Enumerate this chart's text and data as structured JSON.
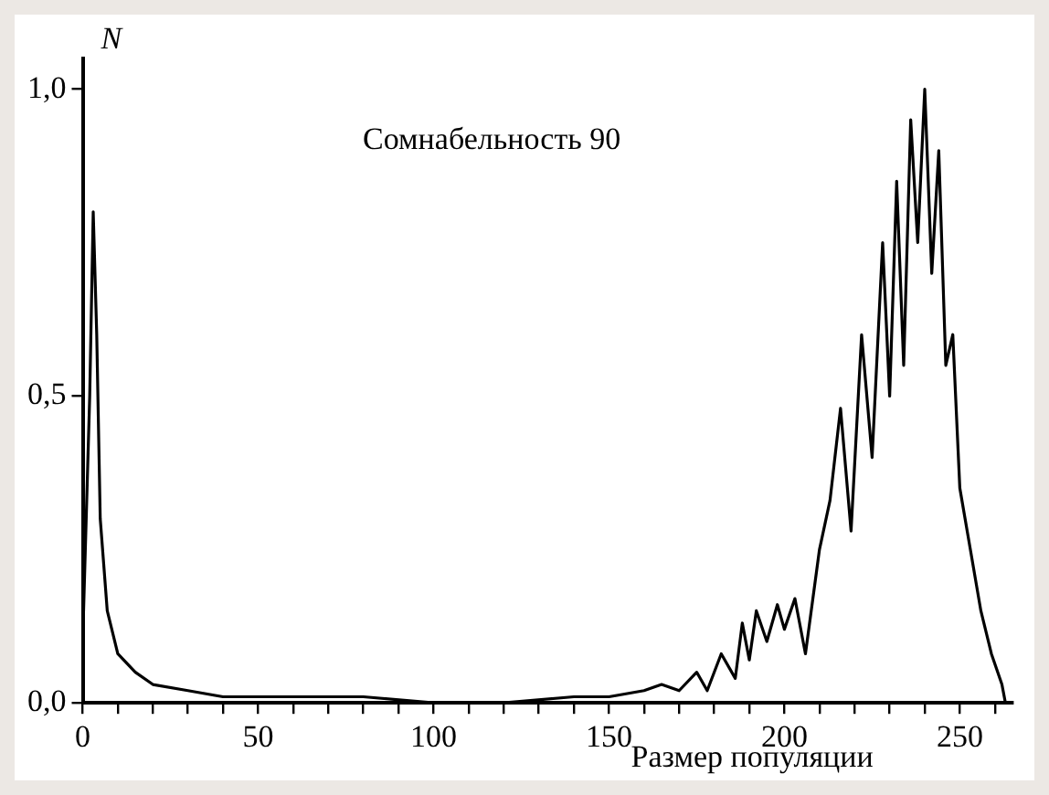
{
  "chart_data": {
    "type": "line",
    "xlabel": "Размер популяции",
    "ylabel": "N",
    "annotations": [
      "Сомнабельность 90"
    ],
    "x": [
      0,
      2,
      3,
      4,
      5,
      7,
      10,
      15,
      20,
      30,
      40,
      50,
      60,
      80,
      100,
      120,
      140,
      150,
      160,
      165,
      170,
      175,
      178,
      182,
      186,
      188,
      190,
      192,
      195,
      198,
      200,
      203,
      206,
      210,
      213,
      216,
      219,
      222,
      225,
      228,
      230,
      232,
      234,
      236,
      238,
      240,
      242,
      244,
      246,
      248,
      250,
      253,
      256,
      259,
      262,
      263
    ],
    "series": [
      {
        "color": "#000000",
        "values": [
          0.1,
          0.5,
          0.8,
          0.6,
          0.3,
          0.15,
          0.08,
          0.05,
          0.03,
          0.02,
          0.01,
          0.01,
          0.01,
          0.01,
          0.0,
          0.0,
          0.01,
          0.01,
          0.02,
          0.03,
          0.02,
          0.05,
          0.02,
          0.08,
          0.04,
          0.13,
          0.07,
          0.15,
          0.1,
          0.16,
          0.12,
          0.17,
          0.08,
          0.25,
          0.33,
          0.48,
          0.28,
          0.6,
          0.4,
          0.75,
          0.5,
          0.85,
          0.55,
          0.95,
          0.75,
          1.0,
          0.7,
          0.9,
          0.55,
          0.6,
          0.35,
          0.25,
          0.15,
          0.08,
          0.03,
          0.0
        ]
      }
    ],
    "xlim": [
      0,
      265
    ],
    "ylim": [
      0,
      1.05
    ],
    "xticks": [
      0,
      {
        "value": 10,
        "label": null
      },
      {
        "value": 20,
        "label": null
      },
      {
        "value": 30,
        "label": null
      },
      {
        "value": 40,
        "label": null
      },
      50,
      {
        "value": 60,
        "label": null
      },
      {
        "value": 70,
        "label": null
      },
      {
        "value": 80,
        "label": null
      },
      {
        "value": 90,
        "label": null
      },
      100,
      {
        "value": 110,
        "label": null
      },
      {
        "value": 120,
        "label": null
      },
      {
        "value": 130,
        "label": null
      },
      {
        "value": 140,
        "label": null
      },
      150,
      {
        "value": 160,
        "label": null
      },
      {
        "value": 170,
        "label": null
      },
      {
        "value": 180,
        "label": null
      },
      {
        "value": 190,
        "label": null
      },
      200,
      {
        "value": 210,
        "label": null
      },
      {
        "value": 220,
        "label": null
      },
      {
        "value": 230,
        "label": null
      },
      {
        "value": 240,
        "label": null
      },
      250,
      {
        "value": 260,
        "label": null
      }
    ],
    "yticks": [
      {
        "value": 0,
        "label": "0,0"
      },
      {
        "value": 0.5,
        "label": "0,5"
      },
      {
        "value": 1,
        "label": "1,0"
      }
    ],
    "grid": false,
    "legend": false,
    "marker": "none",
    "line_style": "solid"
  }
}
